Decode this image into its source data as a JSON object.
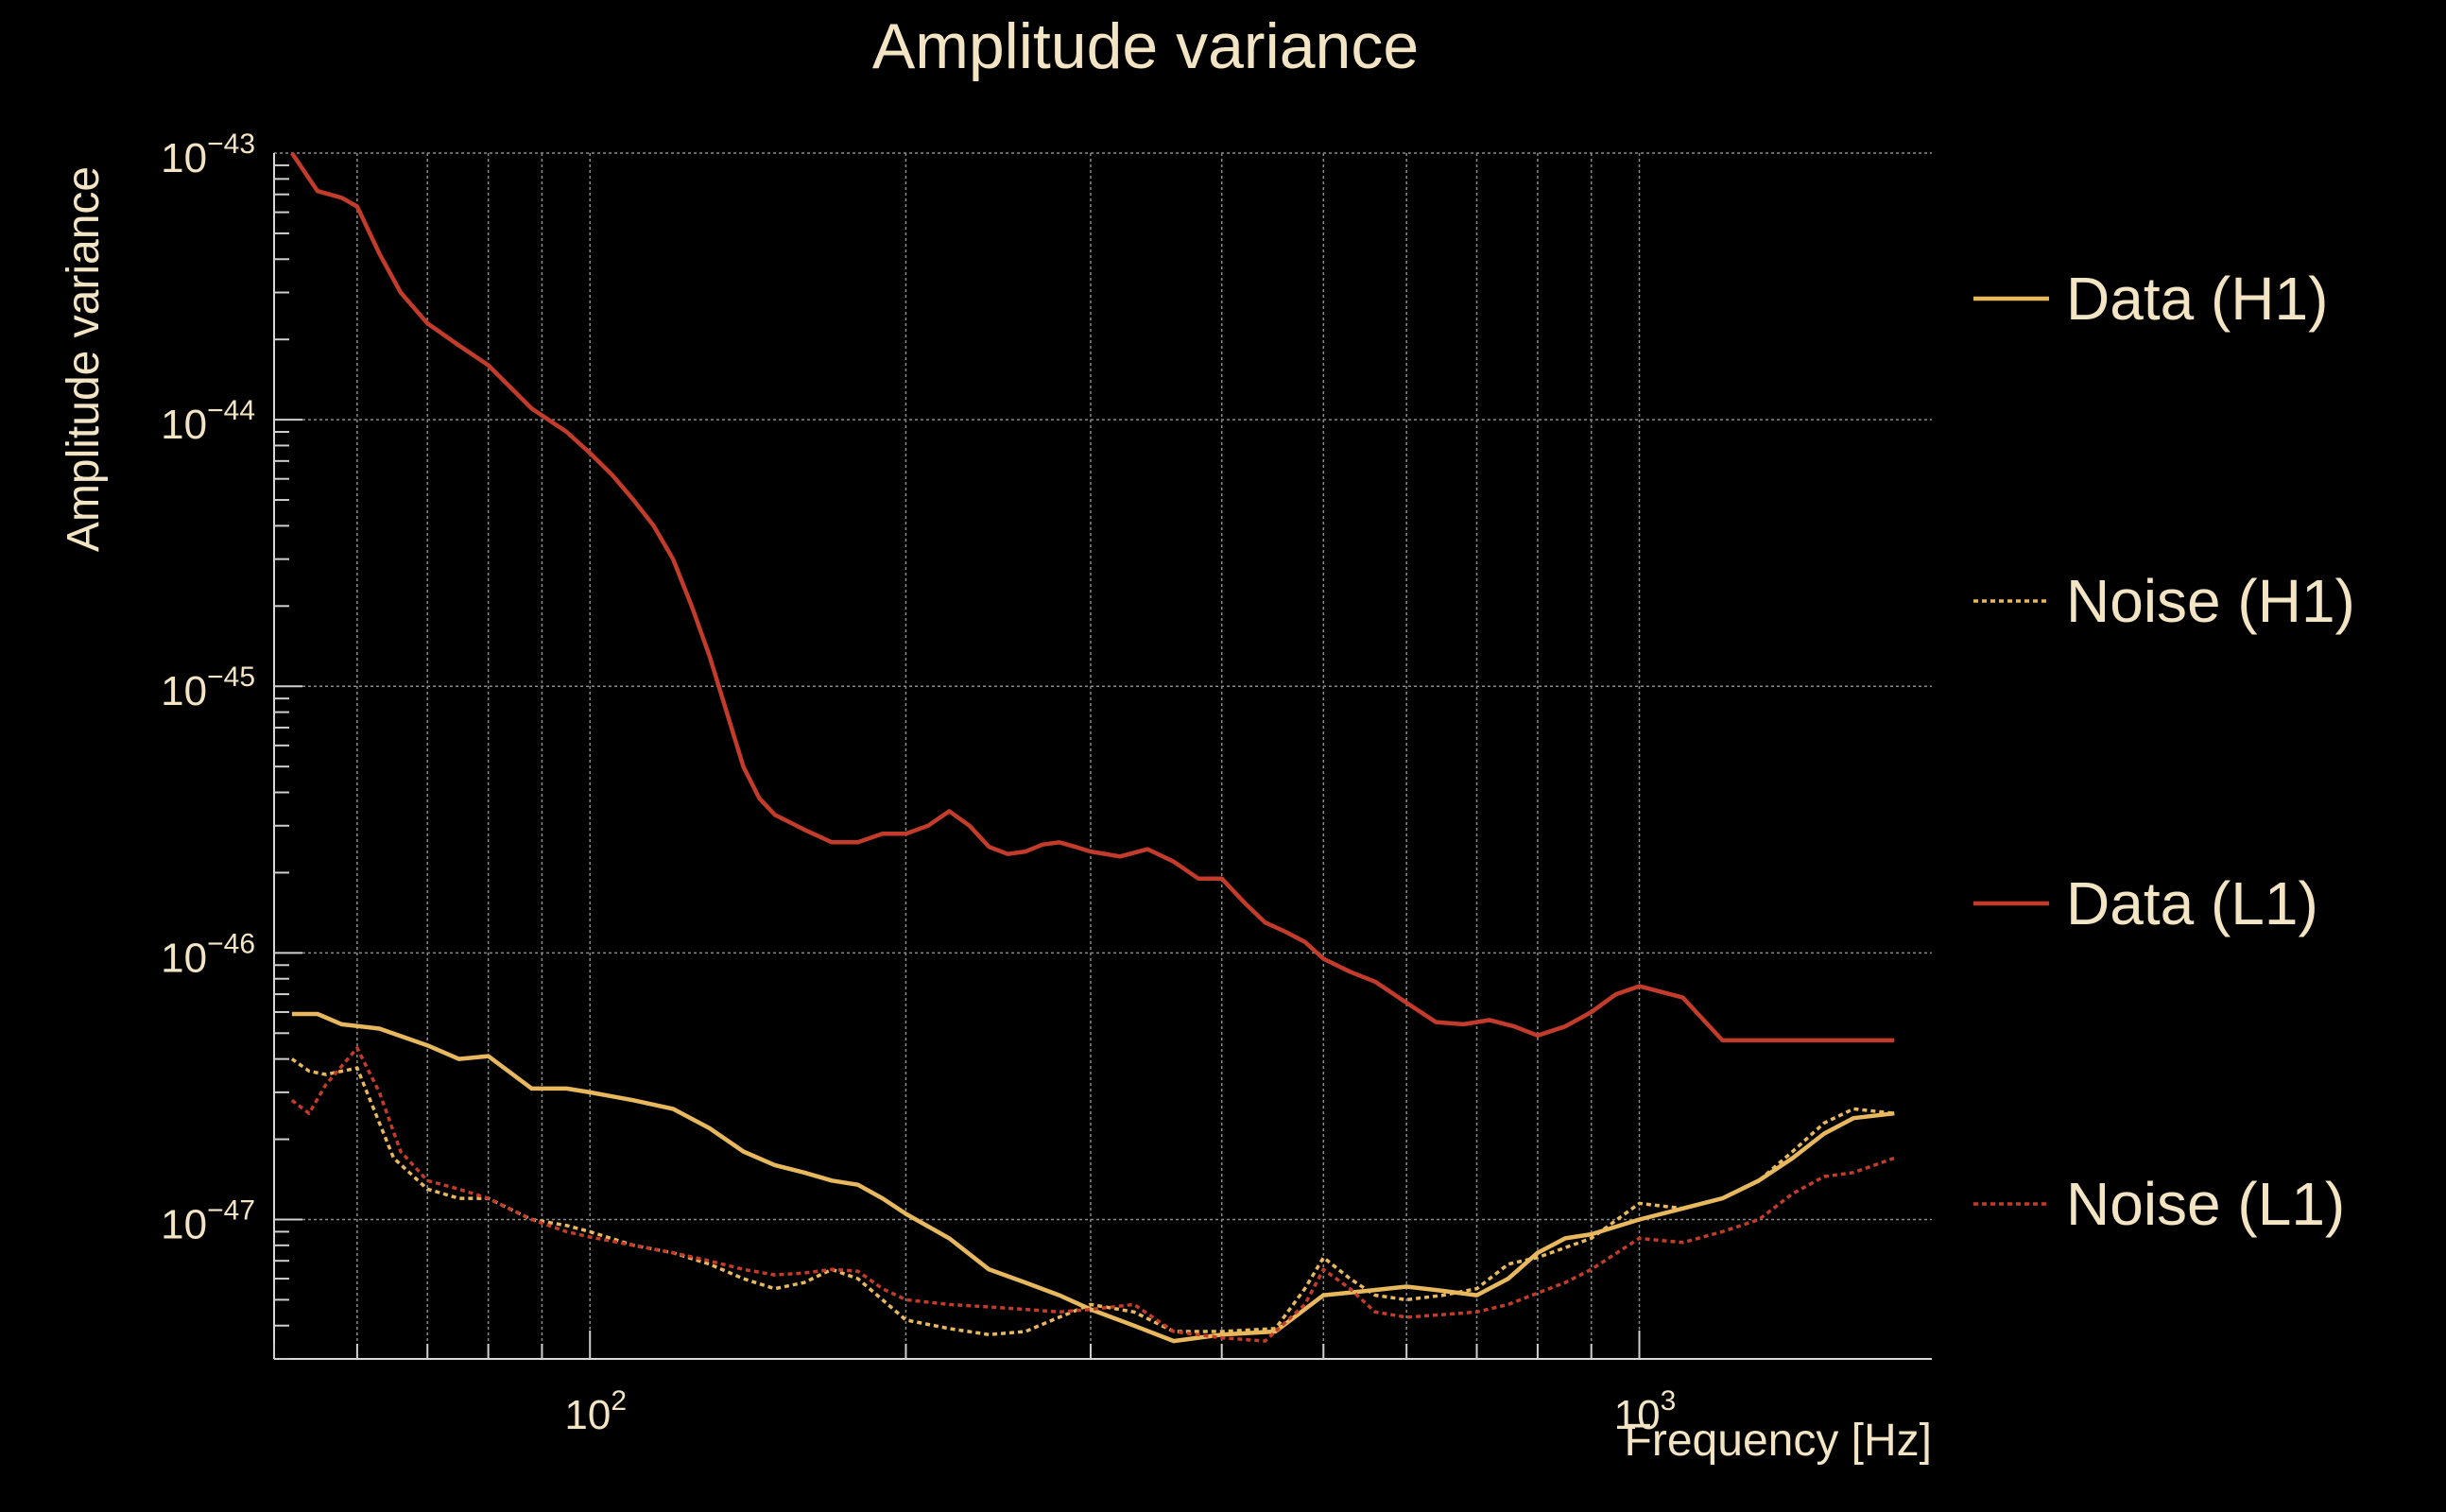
{
  "chart_data": {
    "type": "line",
    "title": "Amplitude variance",
    "xlabel": "Frequency [Hz]",
    "ylabel": "Amplitude variance",
    "x_scale": "log",
    "y_scale": "log",
    "xlim": [
      50,
      1900
    ],
    "ylim": [
      3e-48,
      1e-43
    ],
    "grid": true,
    "legend_position": "right",
    "x_ticks": [
      {
        "base": "10",
        "exp": "2",
        "value": 100
      },
      {
        "base": "10",
        "exp": "3",
        "value": 1000
      }
    ],
    "y_ticks": [
      {
        "base": "10",
        "exp": "−43",
        "value": 1e-43
      },
      {
        "base": "10",
        "exp": "−44",
        "value": 1e-44
      },
      {
        "base": "10",
        "exp": "−45",
        "value": 1e-45
      },
      {
        "base": "10",
        "exp": "−46",
        "value": 1e-46
      },
      {
        "base": "10",
        "exp": "−47",
        "value": 1e-47
      }
    ],
    "series": [
      {
        "name": "Data (H1)",
        "color": "#e8b85f",
        "dash": "solid",
        "x": [
          52,
          55,
          58,
          63,
          70,
          75,
          80,
          88,
          95,
          100,
          110,
          120,
          130,
          140,
          150,
          160,
          170,
          180,
          190,
          200,
          220,
          240,
          260,
          280,
          300,
          330,
          360,
          400,
          450,
          500,
          550,
          600,
          650,
          700,
          750,
          800,
          850,
          900,
          1000,
          1100,
          1200,
          1300,
          1400,
          1500,
          1600,
          1750
        ],
        "y": [
          5.9e-47,
          5.9e-47,
          5.4e-47,
          5.2e-47,
          4.5e-47,
          4e-47,
          4.1e-47,
          3.1e-47,
          3.1e-47,
          3e-47,
          2.8e-47,
          2.6e-47,
          2.2e-47,
          1.8e-47,
          1.6e-47,
          1.5e-47,
          1.4e-47,
          1.35e-47,
          1.2e-47,
          1.05e-47,
          8.5e-48,
          6.5e-48,
          5.8e-48,
          5.2e-48,
          4.6e-48,
          4e-48,
          3.5e-48,
          3.7e-48,
          3.8e-48,
          5.2e-48,
          5.4e-48,
          5.6e-48,
          5.4e-48,
          5.2e-48,
          6e-48,
          7.5e-48,
          8.5e-48,
          8.8e-48,
          1e-47,
          1.1e-47,
          1.2e-47,
          1.4e-47,
          1.7e-47,
          2.1e-47,
          2.4e-47,
          2.5e-47
        ]
      },
      {
        "name": "Noise (H1)",
        "color": "#e8b85f",
        "dash": "dotted",
        "x": [
          52,
          54,
          56,
          60,
          65,
          70,
          75,
          80,
          88,
          95,
          100,
          110,
          120,
          130,
          140,
          150,
          160,
          170,
          180,
          190,
          200,
          220,
          240,
          260,
          280,
          300,
          330,
          360,
          400,
          450,
          480,
          500,
          530,
          560,
          600,
          650,
          700,
          750,
          800,
          900,
          1000,
          1100,
          1200,
          1300,
          1400,
          1500,
          1600,
          1750
        ],
        "y": [
          4e-47,
          3.6e-47,
          3.5e-47,
          3.7e-47,
          1.7e-47,
          1.3e-47,
          1.2e-47,
          1.2e-47,
          1e-47,
          9.5e-48,
          9e-48,
          8e-48,
          7.5e-48,
          6.8e-48,
          6e-48,
          5.5e-48,
          5.8e-48,
          6.5e-48,
          6e-48,
          5e-48,
          4.2e-48,
          3.9e-48,
          3.7e-48,
          3.8e-48,
          4.3e-48,
          4.8e-48,
          4.5e-48,
          3.8e-48,
          3.8e-48,
          3.9e-48,
          5.5e-48,
          7.2e-48,
          6e-48,
          5.2e-48,
          5e-48,
          5.2e-48,
          5.5e-48,
          6.8e-48,
          7.2e-48,
          8.5e-48,
          1.15e-47,
          1.1e-47,
          1.2e-47,
          1.4e-47,
          1.8e-47,
          2.3e-47,
          2.6e-47,
          2.5e-47
        ]
      },
      {
        "name": "Data (L1)",
        "color": "#c23b2b",
        "dash": "solid",
        "x": [
          52,
          55,
          58,
          60,
          63,
          66,
          70,
          75,
          80,
          88,
          95,
          100,
          105,
          110,
          115,
          120,
          125,
          130,
          135,
          140,
          145,
          150,
          160,
          170,
          180,
          190,
          200,
          210,
          220,
          230,
          240,
          250,
          260,
          270,
          280,
          290,
          300,
          320,
          340,
          360,
          380,
          400,
          420,
          440,
          460,
          480,
          500,
          530,
          560,
          600,
          640,
          680,
          720,
          760,
          800,
          850,
          900,
          950,
          1000,
          1100,
          1200,
          1300,
          1400,
          1500,
          1600,
          1750
        ],
        "y": [
          1e-43,
          7.2e-44,
          6.8e-44,
          6.3e-44,
          4.2e-44,
          3e-44,
          2.3e-44,
          1.9e-44,
          1.6e-44,
          1.1e-44,
          9e-45,
          7.5e-45,
          6.2e-45,
          5e-45,
          4e-45,
          3e-45,
          2e-45,
          1.3e-45,
          8e-46,
          5e-46,
          3.8e-46,
          3.3e-46,
          2.9e-46,
          2.6e-46,
          2.6e-46,
          2.8e-46,
          2.8e-46,
          3e-46,
          3.4e-46,
          3e-46,
          2.5e-46,
          2.35e-46,
          2.4e-46,
          2.55e-46,
          2.6e-46,
          2.5e-46,
          2.4e-46,
          2.3e-46,
          2.45e-46,
          2.2e-46,
          1.9e-46,
          1.9e-46,
          1.55e-46,
          1.3e-46,
          1.2e-46,
          1.1e-46,
          9.5e-47,
          8.5e-47,
          7.8e-47,
          6.5e-47,
          5.5e-47,
          5.4e-47,
          5.6e-47,
          5.3e-47,
          4.9e-47,
          5.3e-47,
          6e-47,
          7e-47,
          7.5e-47,
          6.8e-47,
          4.7e-47,
          4.7e-47,
          4.7e-47,
          4.7e-47,
          4.7e-47,
          4.7e-47
        ]
      },
      {
        "name": "Noise (L1)",
        "color": "#c23b2b",
        "dash": "dotted",
        "x": [
          52,
          54,
          56,
          60,
          63,
          66,
          70,
          75,
          80,
          88,
          95,
          100,
          110,
          120,
          130,
          140,
          150,
          160,
          170,
          180,
          190,
          200,
          220,
          240,
          260,
          280,
          300,
          330,
          360,
          400,
          440,
          480,
          500,
          530,
          560,
          600,
          650,
          700,
          750,
          800,
          850,
          900,
          1000,
          1100,
          1200,
          1300,
          1400,
          1500,
          1600,
          1750
        ],
        "y": [
          2.8e-47,
          2.5e-47,
          3.2e-47,
          4.4e-47,
          3e-47,
          1.8e-47,
          1.4e-47,
          1.3e-47,
          1.2e-47,
          1e-47,
          9e-48,
          8.6e-48,
          8e-48,
          7.5e-48,
          7e-48,
          6.5e-48,
          6.2e-48,
          6.3e-48,
          6.5e-48,
          6.4e-48,
          5.5e-48,
          5e-48,
          4.8e-48,
          4.7e-48,
          4.6e-48,
          4.5e-48,
          4.6e-48,
          4.8e-48,
          3.8e-48,
          3.6e-48,
          3.5e-48,
          4.8e-48,
          6.5e-48,
          5.5e-48,
          4.5e-48,
          4.3e-48,
          4.4e-48,
          4.5e-48,
          4.8e-48,
          5.3e-48,
          5.8e-48,
          6.5e-48,
          8.5e-48,
          8.2e-48,
          9e-48,
          1e-47,
          1.25e-47,
          1.45e-47,
          1.5e-47,
          1.7e-47
        ]
      }
    ]
  }
}
